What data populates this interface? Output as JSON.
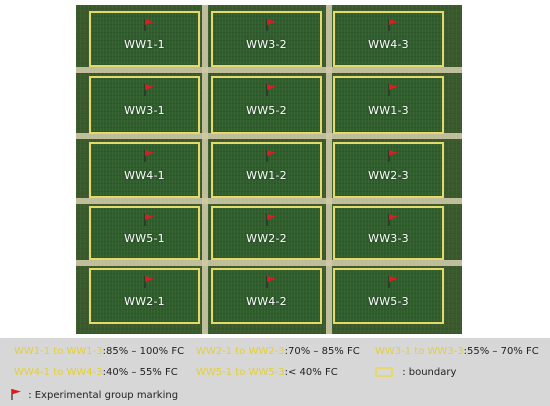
{
  "plots": [
    {
      "label": "WW1-1"
    },
    {
      "label": "WW3-2"
    },
    {
      "label": "WW4-3"
    },
    {
      "label": "WW3-1"
    },
    {
      "label": "WW5-2"
    },
    {
      "label": "WW1-3"
    },
    {
      "label": "WW4-1"
    },
    {
      "label": "WW1-2"
    },
    {
      "label": "WW2-3"
    },
    {
      "label": "WW5-1"
    },
    {
      "label": "WW2-2"
    },
    {
      "label": "WW3-3"
    },
    {
      "label": "WW2-1"
    },
    {
      "label": "WW4-2"
    },
    {
      "label": "WW5-3"
    }
  ],
  "legend": {
    "ww1_range": "WW1-1 to WW1-3",
    "ww1_value": ":85% – 100% FC",
    "ww2_range": "WW2-1 to WW2-3",
    "ww2_value": ":70% – 85% FC",
    "ww3_range": "WW3-1 to WW3-3",
    "ww3_value": ":55% – 70% FC",
    "ww4_range": "WW4-1 to WW4-3",
    "ww4_value": ":40% – 55% FC",
    "ww5_range": "WW5-1 to WW5-3",
    "ww5_value": ":< 40% FC",
    "boundary_text": ": boundary",
    "marking_text": ": Experimental group marking"
  },
  "colors": {
    "boundary": "#e6d96b",
    "flag": "#d62020",
    "legend_range_text": "#e3cf3a"
  },
  "icons": {
    "flag": "red-flag-icon",
    "boundary": "boundary-swatch-icon"
  }
}
